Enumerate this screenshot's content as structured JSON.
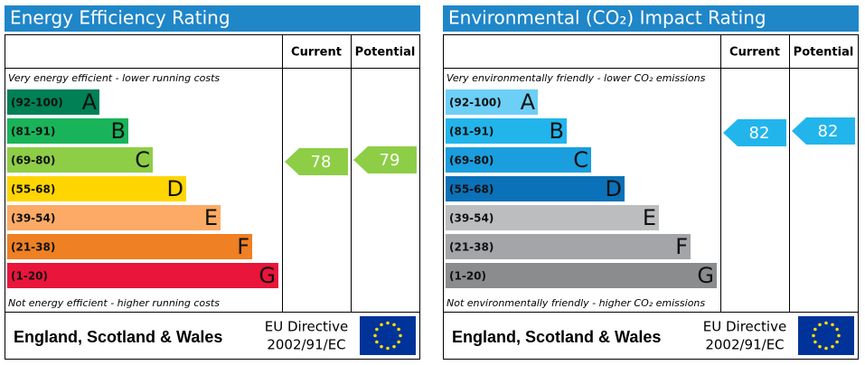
{
  "panels": [
    {
      "title": "Energy Efficiency Rating",
      "columns": [
        "Current",
        "Potential"
      ],
      "top_note": "Very energy efficient - lower running costs",
      "bottom_note": "Not energy efficient - higher running costs",
      "bands": [
        {
          "range": "(92-100)",
          "letter": "A",
          "color": "#008054"
        },
        {
          "range": "(81-91)",
          "letter": "B",
          "color": "#19b459"
        },
        {
          "range": "(69-80)",
          "letter": "C",
          "color": "#8dce46"
        },
        {
          "range": "(55-68)",
          "letter": "D",
          "color": "#ffd500"
        },
        {
          "range": "(39-54)",
          "letter": "E",
          "color": "#fcaa65"
        },
        {
          "range": "(21-38)",
          "letter": "F",
          "color": "#ef8023"
        },
        {
          "range": "(1-20)",
          "letter": "G",
          "color": "#e9153b"
        }
      ],
      "current": 78,
      "potential": 79,
      "footer": {
        "region": "England, Scotland & Wales",
        "directive": [
          "EU Directive",
          "2002/91/EC"
        ]
      }
    },
    {
      "title": "Environmental (CO₂) Impact Rating",
      "columns": [
        "Current",
        "Potential"
      ],
      "top_note": "Very environmentally friendly - lower CO₂ emissions",
      "bottom_note": "Not environmentally friendly - higher CO₂ emissions",
      "bands": [
        {
          "range": "(92-100)",
          "letter": "A",
          "color": "#6dcff6"
        },
        {
          "range": "(81-91)",
          "letter": "B",
          "color": "#22b5ec"
        },
        {
          "range": "(69-80)",
          "letter": "C",
          "color": "#1a9ede"
        },
        {
          "range": "(55-68)",
          "letter": "D",
          "color": "#0b71b8"
        },
        {
          "range": "(39-54)",
          "letter": "E",
          "color": "#bbbdbf"
        },
        {
          "range": "(21-38)",
          "letter": "F",
          "color": "#a3a5a8"
        },
        {
          "range": "(1-20)",
          "letter": "G",
          "color": "#8a8c8e"
        }
      ],
      "current": 82,
      "potential": 82,
      "footer": {
        "region": "England, Scotland & Wales",
        "directive": [
          "EU Directive",
          "2002/91/EC"
        ]
      }
    }
  ]
}
